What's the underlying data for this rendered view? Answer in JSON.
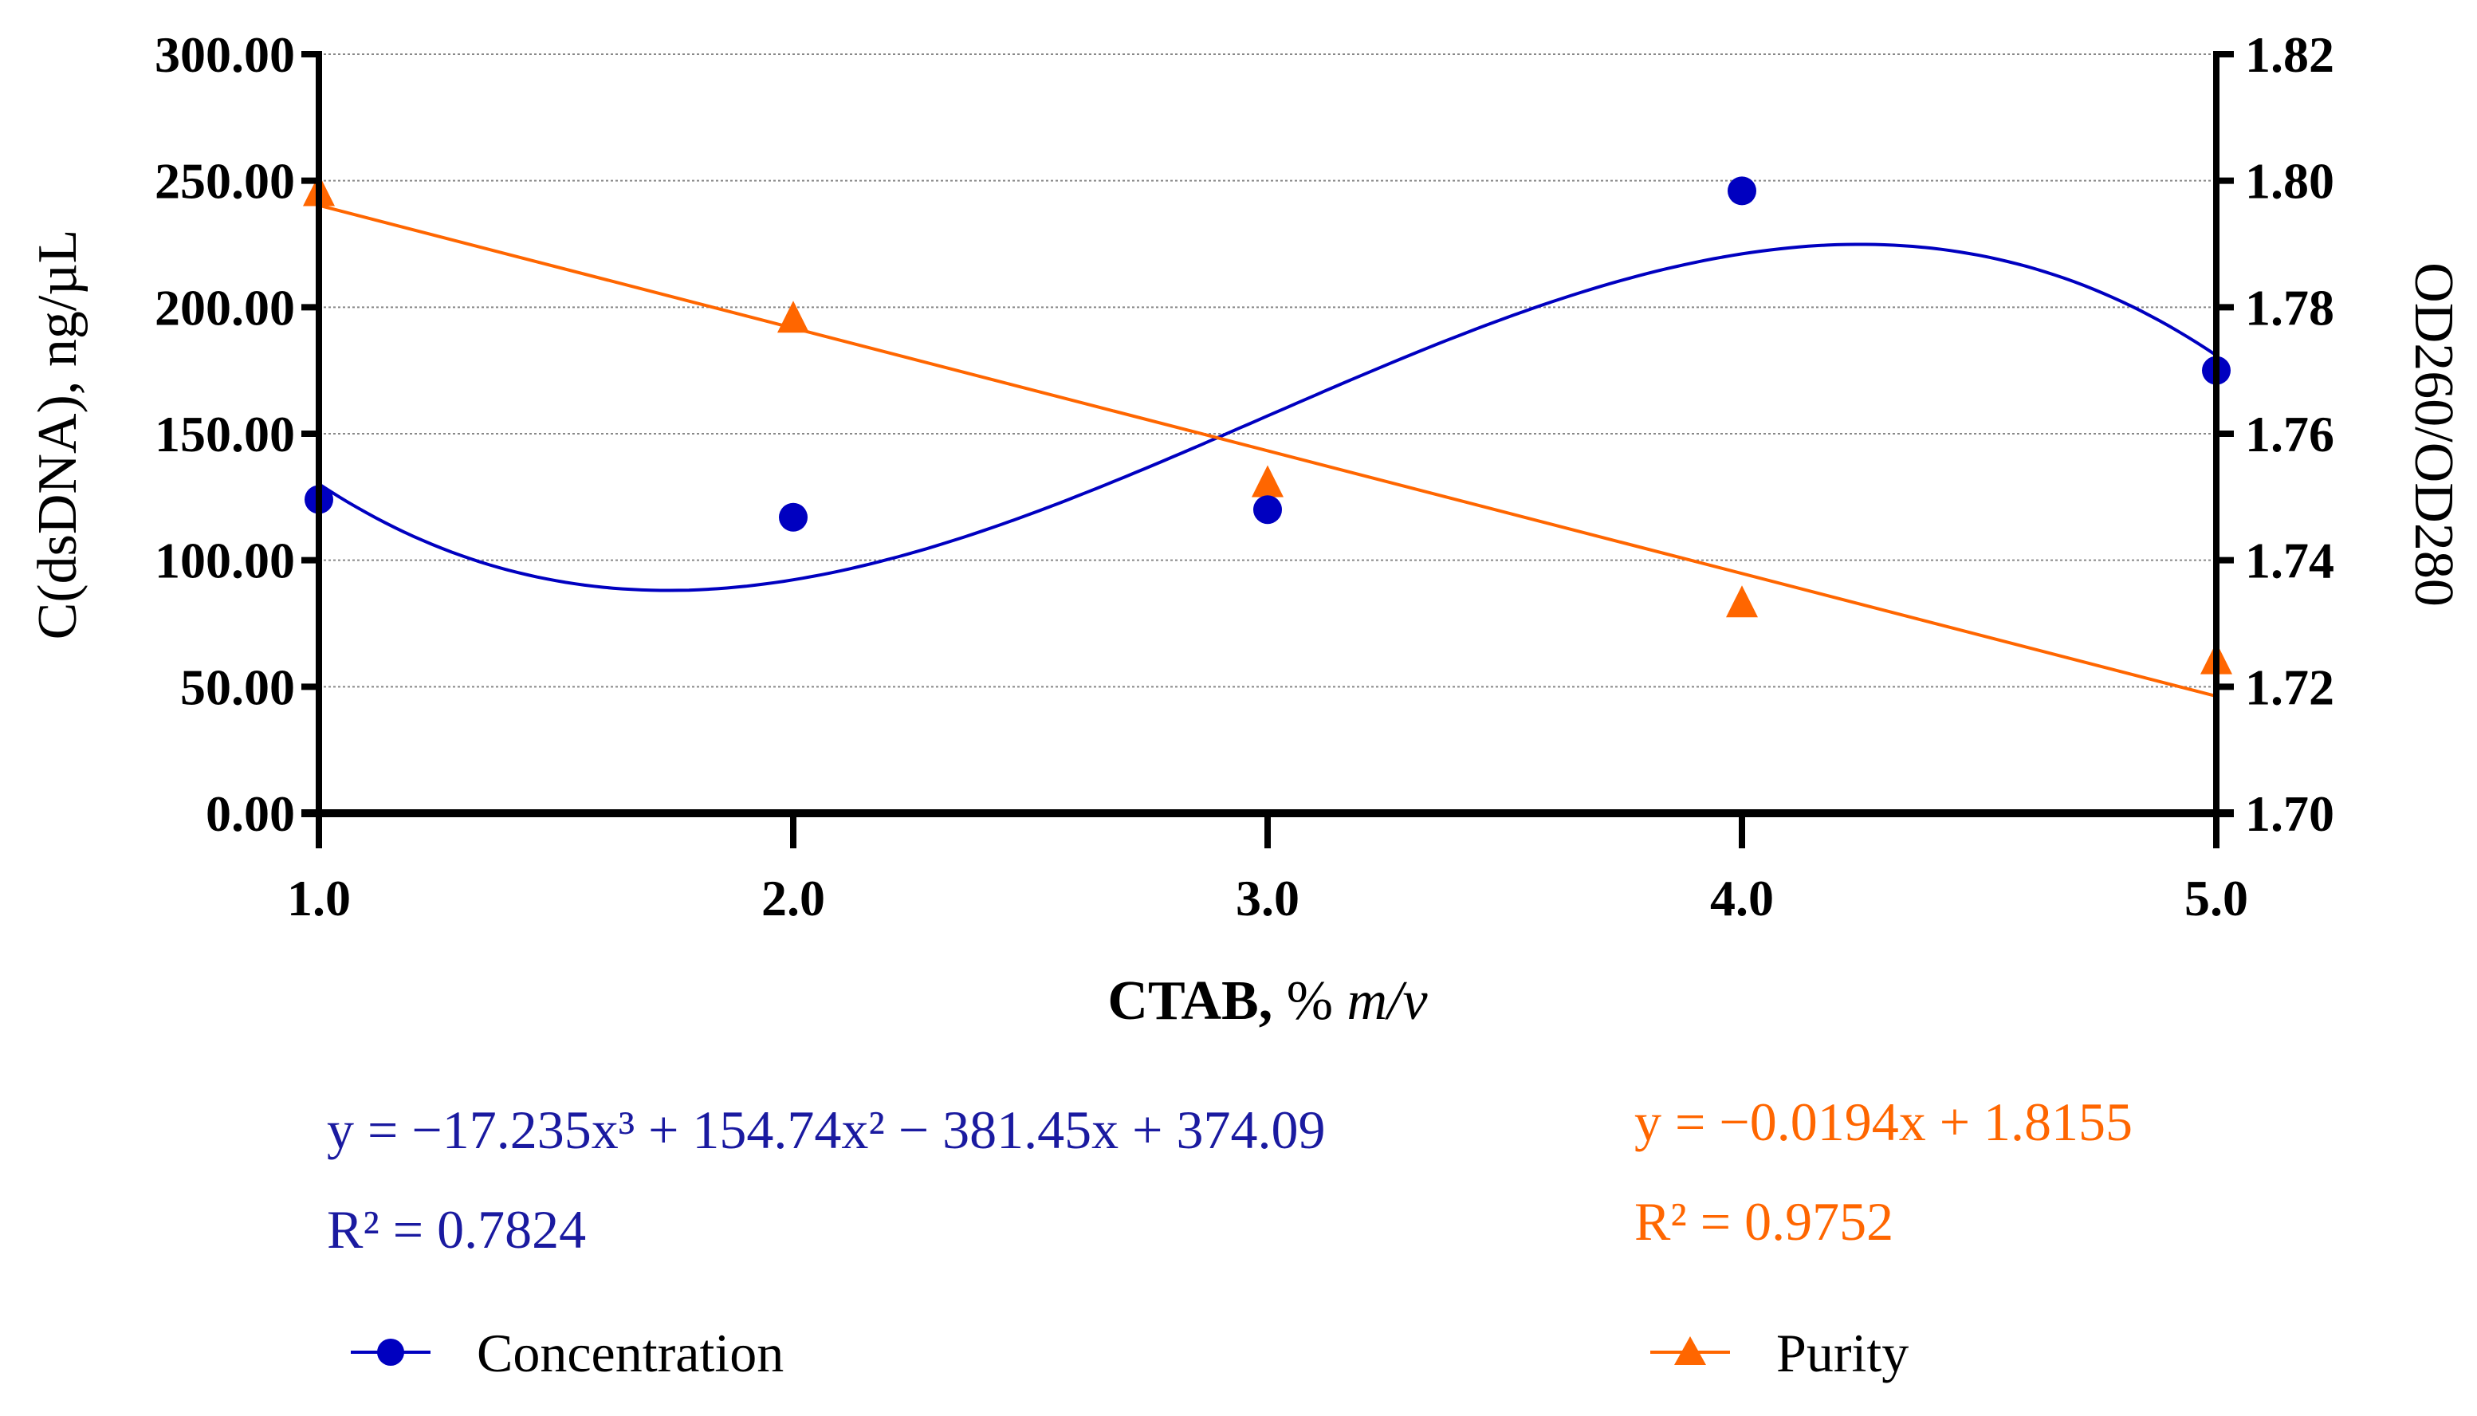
{
  "chart_data": {
    "type": "scatter",
    "xlabel_bold": "CTAB,",
    "xlabel_rest": " % ",
    "xlabel_italic": "m/v",
    "ylabel_left": "C(dsDNA), ng/µL",
    "ylabel_right": "OD260/OD280",
    "x": [
      1,
      2,
      3,
      4,
      5
    ],
    "x_ticks": [
      "1.0",
      "2.0",
      "3.0",
      "4.0",
      "5.0"
    ],
    "xlim": [
      1,
      5
    ],
    "ylim_left": [
      0,
      300
    ],
    "ylim_right": [
      1.7,
      1.82
    ],
    "y_ticks_left": [
      "0.00",
      "50.00",
      "100.00",
      "150.00",
      "200.00",
      "250.00",
      "300.00"
    ],
    "y_ticks_right": [
      "1.70",
      "1.72",
      "1.74",
      "1.76",
      "1.78",
      "1.80",
      "1.82"
    ],
    "grid": true,
    "legend_placement": "bottom",
    "series": [
      {
        "name": "Concentration",
        "axis": "left",
        "marker": "circle",
        "color": "#0000c0",
        "values": [
          124,
          117,
          120,
          246,
          175
        ],
        "fit": {
          "type": "cubic",
          "coefficients": [
            -17.235,
            154.74,
            -381.45,
            374.09
          ],
          "equation": "y = −17.235x³ + 154.74x² − 381.45x + 374.09",
          "r2": "R² = 0.7824"
        }
      },
      {
        "name": "Purity",
        "axis": "right",
        "marker": "triangle",
        "color": "#ff6600",
        "values": [
          1.798,
          1.778,
          1.752,
          1.733,
          1.724
        ],
        "fit": {
          "type": "linear",
          "coefficients": [
            -0.0194,
            1.8155
          ],
          "equation": "y = −0.0194x + 1.8155",
          "r2": "R² = 0.9752"
        }
      }
    ]
  }
}
